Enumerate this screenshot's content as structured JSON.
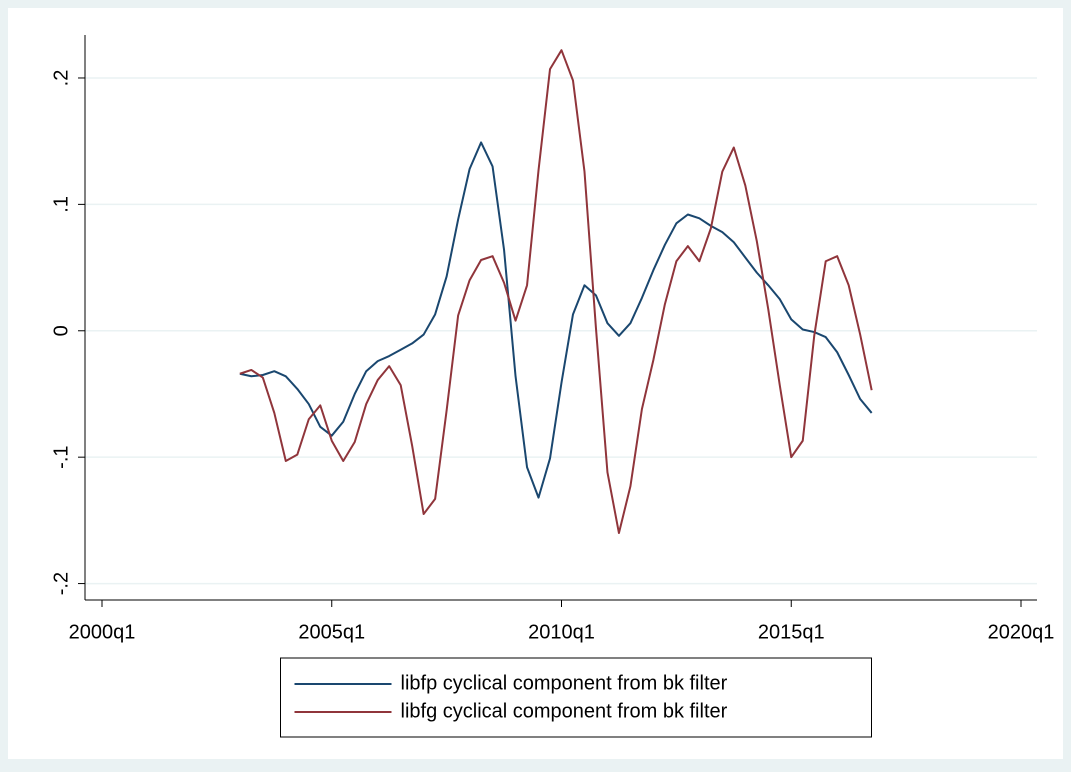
{
  "chart_data": {
    "type": "line",
    "x": [
      "2003q1",
      "2003q2",
      "2003q3",
      "2003q4",
      "2004q1",
      "2004q2",
      "2004q3",
      "2004q4",
      "2005q1",
      "2005q2",
      "2005q3",
      "2005q4",
      "2006q1",
      "2006q2",
      "2006q3",
      "2006q4",
      "2007q1",
      "2007q2",
      "2007q3",
      "2007q4",
      "2008q1",
      "2008q2",
      "2008q3",
      "2008q4",
      "2009q1",
      "2009q2",
      "2009q3",
      "2009q4",
      "2010q1",
      "2010q2",
      "2010q3",
      "2010q4",
      "2011q1",
      "2011q2",
      "2011q3",
      "2011q4",
      "2012q1",
      "2012q2",
      "2012q3",
      "2012q4",
      "2013q1",
      "2013q2",
      "2013q3",
      "2013q4",
      "2014q1",
      "2014q2",
      "2014q3",
      "2014q4",
      "2015q1",
      "2015q2",
      "2015q3",
      "2015q4",
      "2016q1",
      "2016q2",
      "2016q3",
      "2016q4"
    ],
    "series": [
      {
        "name": "libfp cyclical component from bk filter",
        "color": "#1a476f",
        "values": [
          -0.034,
          -0.036,
          -0.035,
          -0.032,
          -0.036,
          -0.046,
          -0.058,
          -0.076,
          -0.083,
          -0.072,
          -0.05,
          -0.032,
          -0.024,
          -0.02,
          -0.015,
          -0.01,
          -0.003,
          0.013,
          0.043,
          0.088,
          0.128,
          0.149,
          0.13,
          0.064,
          -0.036,
          -0.108,
          -0.132,
          -0.101,
          -0.041,
          0.013,
          0.036,
          0.028,
          0.006,
          -0.004,
          0.006,
          0.026,
          0.048,
          0.068,
          0.085,
          0.092,
          0.089,
          0.083,
          0.078,
          0.07,
          0.058,
          0.046,
          0.036,
          0.025,
          0.009,
          0.001,
          -0.001,
          -0.005,
          -0.017,
          -0.035,
          -0.054,
          -0.065
        ]
      },
      {
        "name": "libfg cyclical component from bk filter",
        "color": "#90353b",
        "values": [
          -0.034,
          -0.031,
          -0.037,
          -0.065,
          -0.103,
          -0.098,
          -0.07,
          -0.059,
          -0.087,
          -0.103,
          -0.088,
          -0.058,
          -0.039,
          -0.028,
          -0.043,
          -0.091,
          -0.145,
          -0.133,
          -0.063,
          0.012,
          0.04,
          0.056,
          0.059,
          0.038,
          0.008,
          0.036,
          0.127,
          0.207,
          0.222,
          0.198,
          0.126,
          0.002,
          -0.112,
          -0.16,
          -0.123,
          -0.062,
          -0.023,
          0.021,
          0.055,
          0.067,
          0.055,
          0.081,
          0.126,
          0.145,
          0.115,
          0.071,
          0.017,
          -0.043,
          -0.1,
          -0.087,
          -0.004,
          0.055,
          0.059,
          0.036,
          -0.003,
          -0.047
        ]
      }
    ],
    "xlim": [
      "2000q1",
      "2020q1"
    ],
    "xticks": [
      "2000q1",
      "2005q1",
      "2010q1",
      "2015q1",
      "2020q1"
    ],
    "ylim": [
      -0.213,
      0.234
    ],
    "yticks": [
      {
        "value": -0.2,
        "label": "-.2"
      },
      {
        "value": -0.1,
        "label": "-.1"
      },
      0,
      {
        "value": 0.1,
        "label": ".1"
      },
      {
        "value": 0.2,
        "label": ".2"
      }
    ],
    "grid": true,
    "legend_position": "bottom"
  }
}
